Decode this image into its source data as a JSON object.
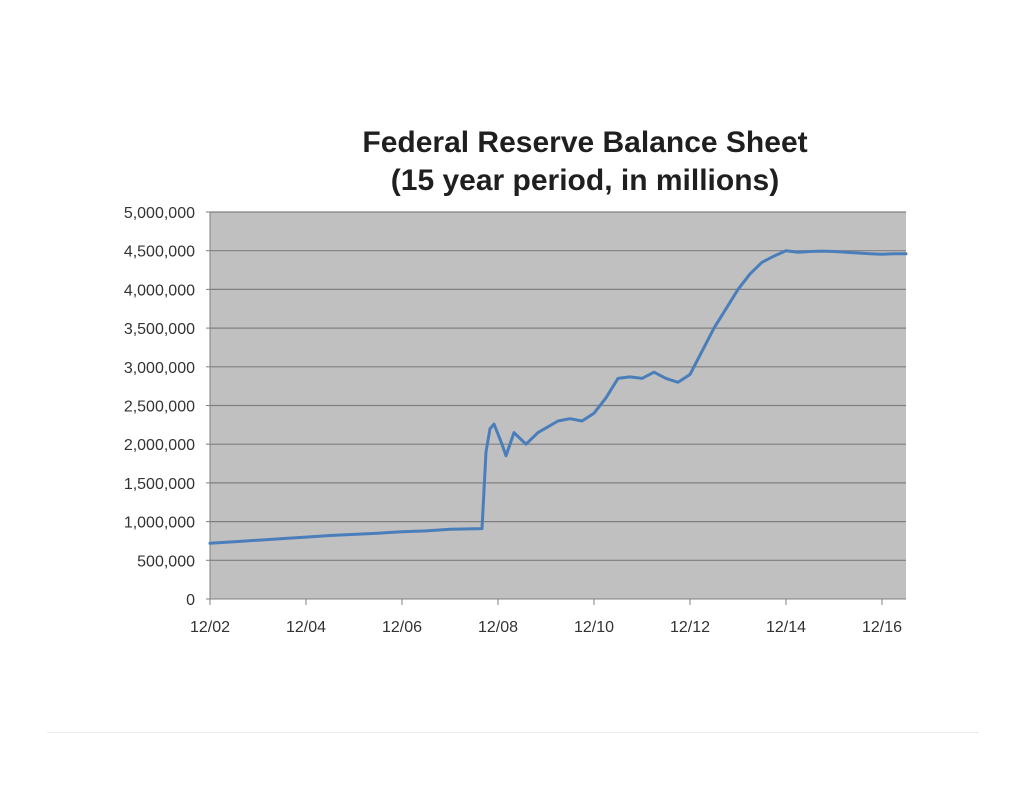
{
  "chart_data": {
    "type": "line",
    "title": "Federal Reserve Balance Sheet",
    "subtitle": "(15 year period, in millions)",
    "xlabel": "",
    "ylabel": "",
    "ylim": [
      0,
      5000000
    ],
    "y_ticks": [
      "0",
      "500,000",
      "1,000,000",
      "1,500,000",
      "2,000,000",
      "2,500,000",
      "3,000,000",
      "3,500,000",
      "4,000,000",
      "4,500,000",
      "5,000,000"
    ],
    "x_ticks": [
      "12/02",
      "12/04",
      "12/06",
      "12/08",
      "12/10",
      "12/12",
      "12/14",
      "12/16"
    ],
    "xlim": [
      "2002-12",
      "2017-06"
    ],
    "grid": true,
    "legend": "none",
    "colors": {
      "plot_background": "#c0c0c0",
      "gridline": "#7f7f7f",
      "line": "#4a7ebb",
      "axis": "#808080"
    },
    "series": [
      {
        "points": [
          [
            "2002-12",
            720000
          ],
          [
            "2003-06",
            740000
          ],
          [
            "2003-12",
            760000
          ],
          [
            "2004-06",
            780000
          ],
          [
            "2004-12",
            800000
          ],
          [
            "2005-06",
            820000
          ],
          [
            "2005-12",
            835000
          ],
          [
            "2006-06",
            850000
          ],
          [
            "2006-12",
            870000
          ],
          [
            "2007-06",
            880000
          ],
          [
            "2007-12",
            900000
          ],
          [
            "2008-08",
            910000
          ],
          [
            "2008-09",
            1900000
          ],
          [
            "2008-10",
            2200000
          ],
          [
            "2008-11",
            2260000
          ],
          [
            "2009-01",
            2000000
          ],
          [
            "2009-02",
            1850000
          ],
          [
            "2009-04",
            2150000
          ],
          [
            "2009-05",
            2100000
          ],
          [
            "2009-07",
            2000000
          ],
          [
            "2009-10",
            2150000
          ],
          [
            "2010-03",
            2300000
          ],
          [
            "2010-06",
            2330000
          ],
          [
            "2010-09",
            2300000
          ],
          [
            "2010-12",
            2400000
          ],
          [
            "2011-03",
            2600000
          ],
          [
            "2011-06",
            2850000
          ],
          [
            "2011-09",
            2870000
          ],
          [
            "2011-12",
            2850000
          ],
          [
            "2012-03",
            2930000
          ],
          [
            "2012-06",
            2850000
          ],
          [
            "2012-09",
            2800000
          ],
          [
            "2012-12",
            2900000
          ],
          [
            "2013-03",
            3200000
          ],
          [
            "2013-06",
            3500000
          ],
          [
            "2013-09",
            3750000
          ],
          [
            "2013-12",
            4000000
          ],
          [
            "2014-03",
            4200000
          ],
          [
            "2014-06",
            4350000
          ],
          [
            "2014-09",
            4430000
          ],
          [
            "2014-12",
            4500000
          ],
          [
            "2015-03",
            4480000
          ],
          [
            "2015-06",
            4490000
          ],
          [
            "2015-09",
            4495000
          ],
          [
            "2015-12",
            4490000
          ],
          [
            "2016-03",
            4480000
          ],
          [
            "2016-06",
            4470000
          ],
          [
            "2016-09",
            4460000
          ],
          [
            "2016-12",
            4455000
          ],
          [
            "2017-03",
            4460000
          ],
          [
            "2017-06",
            4460000
          ]
        ]
      }
    ]
  }
}
